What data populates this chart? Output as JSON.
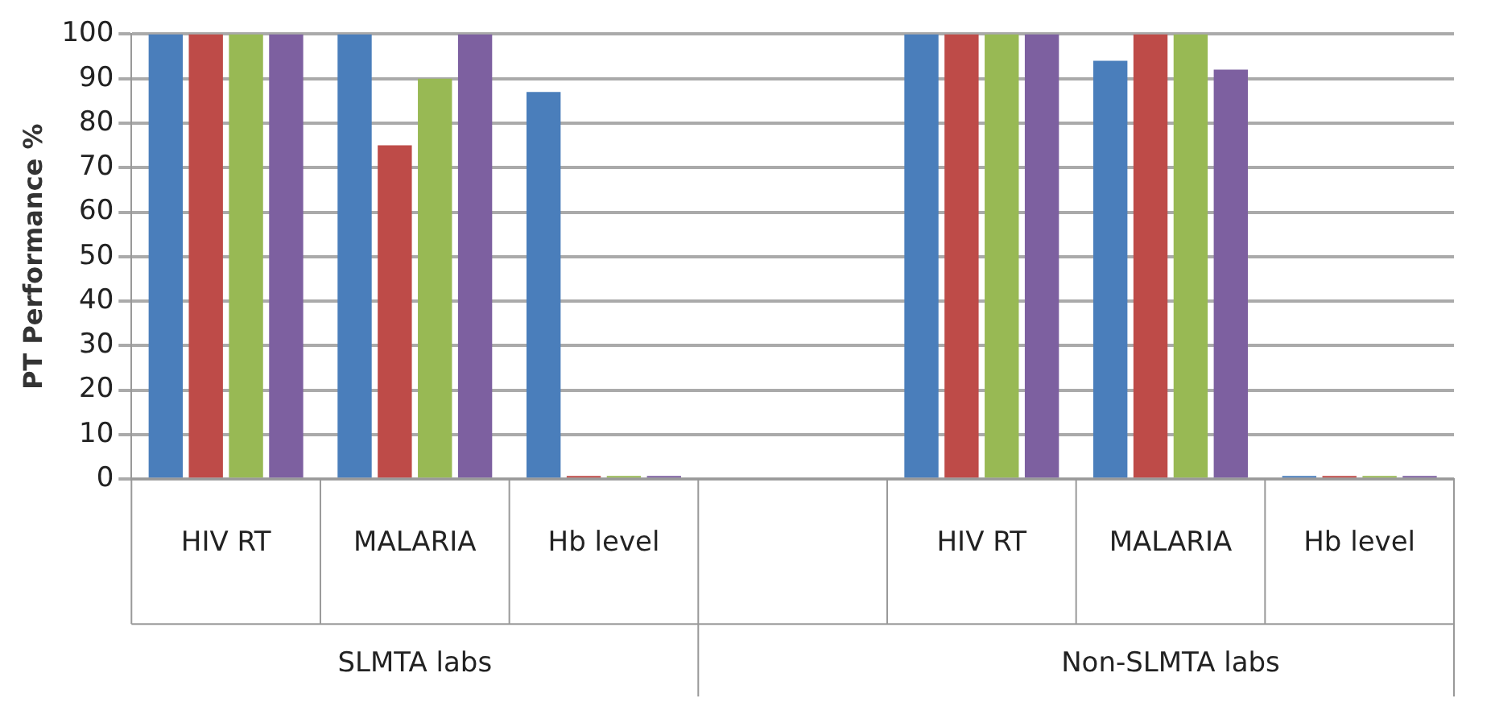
{
  "chart_data": {
    "type": "bar",
    "ylabel": "PT Performance %",
    "categories": [
      "HIV RT",
      "MALARIA",
      "Hb level",
      null,
      "HIV RT",
      "MALARIA",
      "Hb level"
    ],
    "series": [
      {
        "color": "#4a7ebb",
        "values": [
          100,
          100,
          87,
          null,
          100,
          94,
          0
        ]
      },
      {
        "color": "#be4b48",
        "values": [
          100,
          75,
          0,
          null,
          100,
          100,
          0
        ]
      },
      {
        "color": "#98b954",
        "values": [
          100,
          90,
          0,
          null,
          100,
          100,
          0
        ]
      },
      {
        "color": "#7d60a0",
        "values": [
          100,
          100,
          0,
          null,
          100,
          92,
          0
        ]
      }
    ],
    "ylim": [
      0,
      100
    ],
    "yticks": [
      0,
      10,
      20,
      30,
      40,
      50,
      60,
      70,
      80,
      90,
      100
    ],
    "grid": "y",
    "annotations": [
      "SLMTA labs",
      "Non-SLMTA labs"
    ]
  }
}
